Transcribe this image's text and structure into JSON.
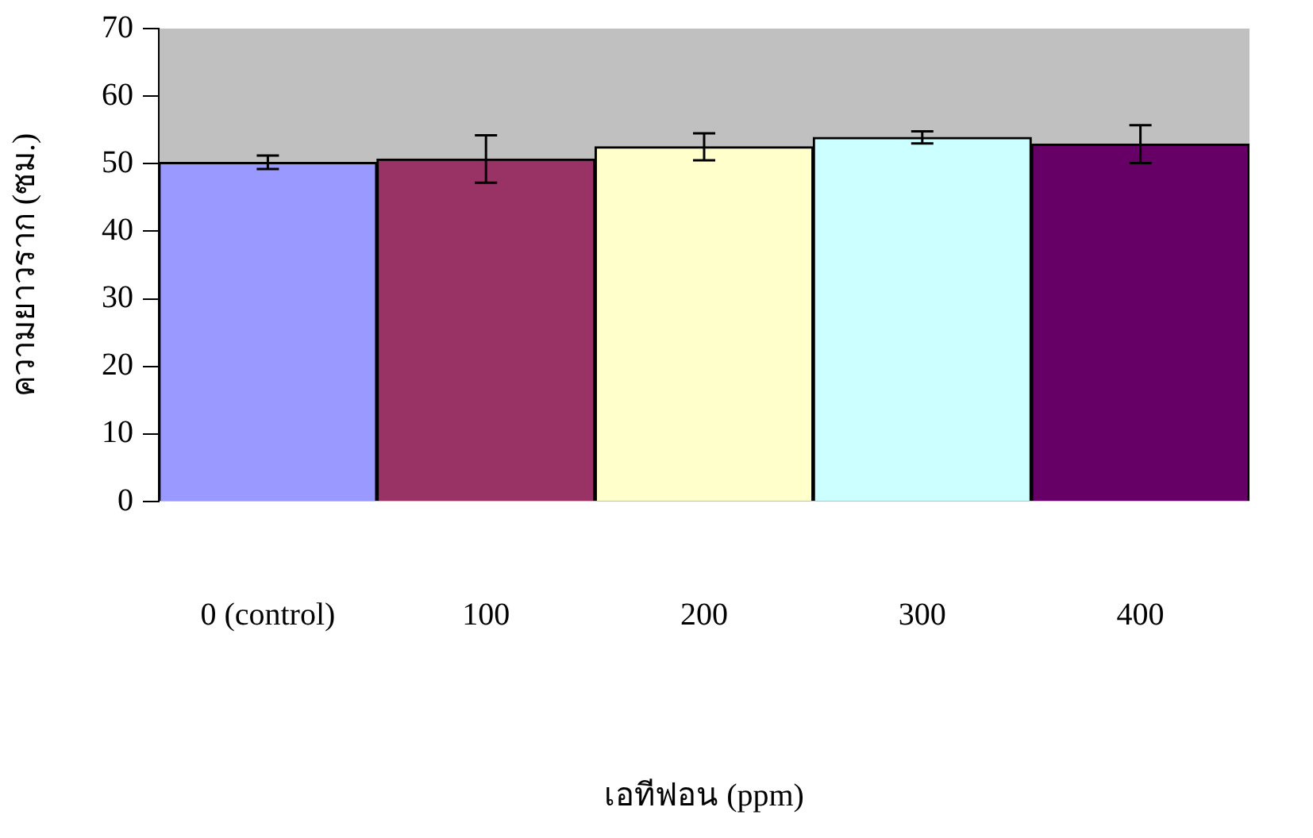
{
  "chart_data": {
    "type": "bar",
    "xlabel": "เอทีฟอน (ppm)",
    "ylabel": "ความยาวราก (ซม.)",
    "categories": [
      "0 (control)",
      "100",
      "200",
      "300",
      "400"
    ],
    "values": [
      50.2,
      50.7,
      52.5,
      53.9,
      52.9
    ],
    "errors": [
      1.0,
      3.5,
      2.0,
      0.9,
      2.8
    ],
    "colors": [
      "#9999ff",
      "#993366",
      "#ffffcc",
      "#ccffff",
      "#660066"
    ],
    "ylim": [
      0,
      70
    ],
    "yticks": [
      0,
      10,
      20,
      30,
      40,
      50,
      60,
      70
    ],
    "grid": false,
    "legend": false
  }
}
